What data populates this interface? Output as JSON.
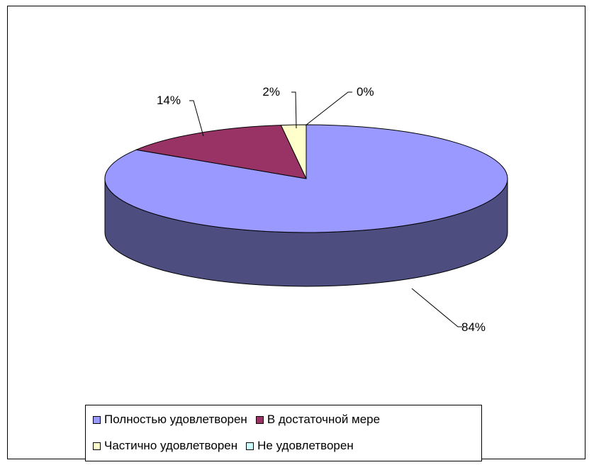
{
  "chart_data": {
    "type": "pie",
    "title": "",
    "slices": [
      {
        "name": "Полностью удовлетворен",
        "value": 84,
        "label": "84%",
        "color": "#9999ff",
        "side_color": "#4d4d7f"
      },
      {
        "name": "В достаточной мере",
        "value": 14,
        "label": "14%",
        "color": "#993366",
        "side_color": "#4d1a33"
      },
      {
        "name": "Частично удовлетворен",
        "value": 2,
        "label": "2%",
        "color": "#ffffcc",
        "side_color": "#80806a"
      },
      {
        "name": "Не удовлетворен",
        "value": 0,
        "label": "0%",
        "color": "#ccffff",
        "side_color": "#668080"
      }
    ],
    "legend_placement": "bottom",
    "three_d": true
  }
}
